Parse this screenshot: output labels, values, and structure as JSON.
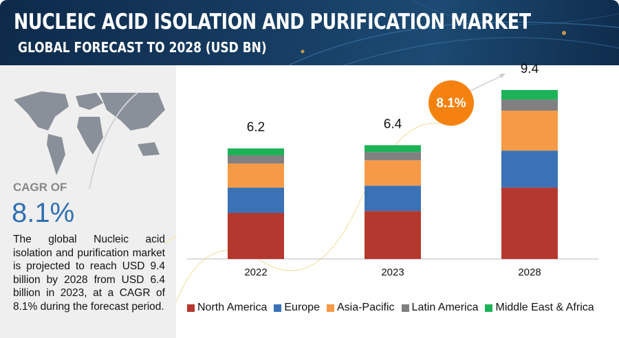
{
  "header": {
    "title": "NUCLEIC ACID ISOLATION AND PURIFICATION MARKET",
    "subtitle": "GLOBAL FORECAST TO 2028 (USD BN)"
  },
  "sidebar": {
    "cagr_label": "CAGR OF",
    "cagr_value": "8.1%",
    "text": "The global Nucleic acid isolation and purification market is projected to reach USD 9.4 billion by 2028 from USD 6.4 billion in 2023, at a CAGR of 8.1% during the forecast period."
  },
  "chart_data": {
    "type": "stacked_bar",
    "categories": [
      "2022",
      "2023",
      "2028"
    ],
    "totals": [
      6.2,
      6.4,
      9.4
    ],
    "cagr": "8.1%",
    "series": [
      {
        "name": "North America",
        "color": "#b5382f",
        "values": [
          2.56,
          2.67,
          3.97
        ]
      },
      {
        "name": "Europe",
        "color": "#3a72b5",
        "values": [
          1.41,
          1.41,
          2.06
        ]
      },
      {
        "name": "Asia-Pacific",
        "color": "#f79a47",
        "values": [
          1.34,
          1.41,
          2.22
        ]
      },
      {
        "name": "Latin America",
        "color": "#808080",
        "values": [
          0.46,
          0.46,
          0.62
        ]
      },
      {
        "name": "Middle East & Africa",
        "color": "#1cb357",
        "values": [
          0.38,
          0.38,
          0.53
        ]
      }
    ]
  }
}
